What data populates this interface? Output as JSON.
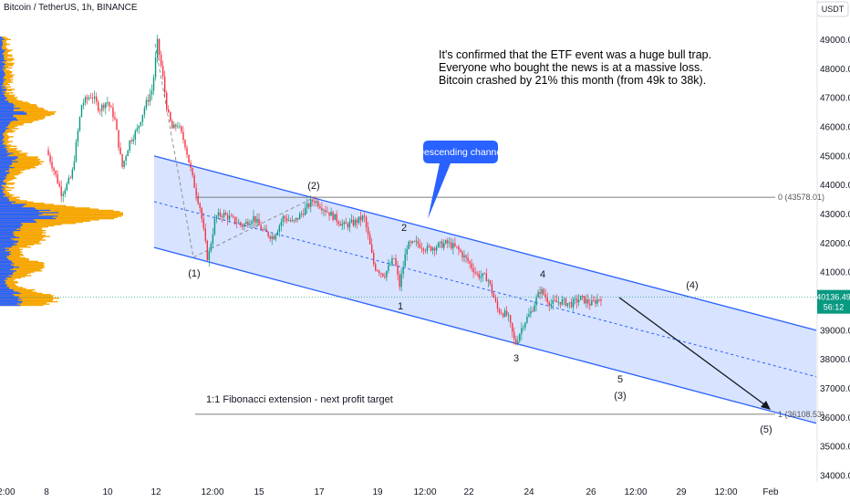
{
  "header": {
    "symbol_title": "Bitcoin / TetherUS, 1h, BINANCE",
    "currency_button": "USDT"
  },
  "chart_data": {
    "type": "candlestick",
    "title": "Bitcoin / TetherUS, 1h, BINANCE",
    "ylim": [
      33800,
      49800
    ],
    "y_ticks": [
      34000,
      35000,
      36000,
      37000,
      38000,
      39000,
      40000,
      41000,
      42000,
      43000,
      44000,
      45000,
      46000,
      47000,
      48000,
      49000
    ],
    "x_tick_labels": [
      "12:00",
      "8",
      "10",
      "12",
      "12:00",
      "15",
      "17",
      "19",
      "12:00",
      "22",
      "24",
      "26",
      "12:00",
      "29",
      "12:00",
      "Feb"
    ],
    "current_price": "40136.49",
    "countdown": "56:12",
    "price_path": [
      [
        0.0,
        45200
      ],
      [
        0.03,
        44500
      ],
      [
        0.06,
        43700
      ],
      [
        0.1,
        44300
      ],
      [
        0.14,
        46800
      ],
      [
        0.18,
        47100
      ],
      [
        0.21,
        46600
      ],
      [
        0.24,
        46900
      ],
      [
        0.27,
        46300
      ],
      [
        0.3,
        44600
      ],
      [
        0.33,
        45500
      ],
      [
        0.36,
        45900
      ],
      [
        0.39,
        46700
      ],
      [
        0.42,
        47300
      ],
      [
        0.44,
        48900
      ],
      [
        0.46,
        47800
      ],
      [
        0.48,
        46500
      ],
      [
        0.5,
        45900
      ],
      [
        0.52,
        46100
      ],
      [
        0.55,
        45400
      ],
      [
        0.58,
        44200
      ],
      [
        0.61,
        43200
      ],
      [
        0.64,
        41400
      ],
      [
        0.67,
        42900
      ],
      [
        0.7,
        43000
      ],
      [
        0.74,
        42800
      ],
      [
        0.78,
        42600
      ],
      [
        0.82,
        42900
      ],
      [
        0.86,
        42400
      ],
      [
        0.9,
        42200
      ],
      [
        0.94,
        42900
      ],
      [
        0.98,
        42700
      ],
      [
        1.02,
        43100
      ],
      [
        1.06,
        43500
      ],
      [
        1.1,
        43200
      ],
      [
        1.14,
        42900
      ],
      [
        1.18,
        42600
      ],
      [
        1.22,
        42700
      ],
      [
        1.26,
        42900
      ],
      [
        1.3,
        41200
      ],
      [
        1.34,
        40900
      ],
      [
        1.38,
        41500
      ],
      [
        1.4,
        40500
      ],
      [
        1.43,
        41900
      ],
      [
        1.47,
        42000
      ],
      [
        1.51,
        41800
      ],
      [
        1.55,
        41900
      ],
      [
        1.59,
        42000
      ],
      [
        1.63,
        41800
      ],
      [
        1.67,
        41400
      ],
      [
        1.71,
        40900
      ],
      [
        1.75,
        40800
      ],
      [
        1.79,
        39700
      ],
      [
        1.83,
        39500
      ],
      [
        1.86,
        38500
      ],
      [
        1.89,
        39200
      ],
      [
        1.92,
        39600
      ],
      [
        1.96,
        40400
      ],
      [
        2.0,
        39900
      ],
      [
        2.04,
        40000
      ],
      [
        2.08,
        39900
      ],
      [
        2.12,
        40100
      ],
      [
        2.16,
        39900
      ],
      [
        2.2,
        40136
      ]
    ],
    "fib_top_label": "0 (43578.01)",
    "fib_top_value": 43578.01,
    "fib_ext_label": "1 (36108.53)",
    "fib_ext_value": 36108.53,
    "fib_ext_caption": "1:1 Fibonacci extension - next profit target",
    "channel_callout": "Descending channel",
    "note_lines": [
      "It's confirmed that the ETF event was a huge bull trap.",
      "Everyone who bought the news is at a massive loss.",
      "Bitcoin crashed by 21% this month (from 49k to 38k)."
    ],
    "wave_labels": [
      "(1)",
      "(2)",
      "1",
      "2",
      "3",
      "4",
      "5",
      "(3)",
      "(4)",
      "(5)"
    ],
    "colors": {
      "up": "#089981",
      "down": "#f23645",
      "channel": "#2962ff",
      "channel_fill": "#2962ff",
      "volume_profile": "#f7a600",
      "volume_profile_alt": "#2962ff",
      "price_badge": "#089981"
    }
  }
}
